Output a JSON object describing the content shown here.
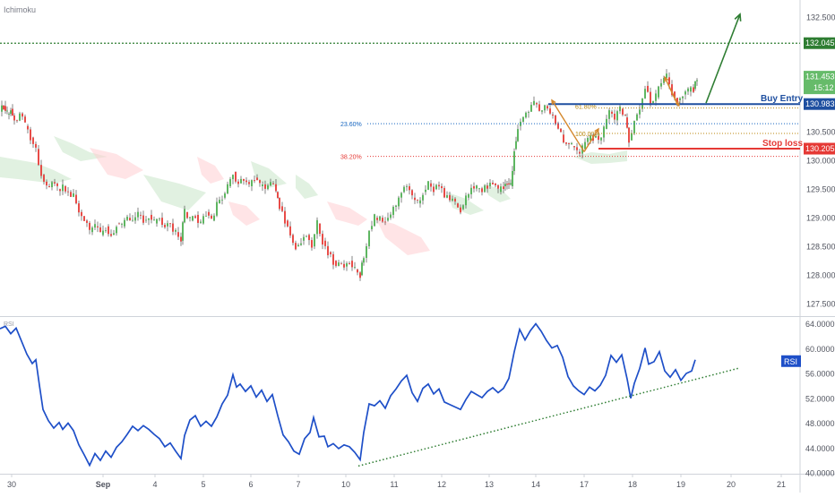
{
  "chart_data": [
    {
      "type": "candlestick",
      "indicator_label": "Ichimoku",
      "y_ticks": [
        "132.500",
        "131.500",
        "130.500",
        "130.000",
        "129.500",
        "129.000",
        "128.500",
        "128.000",
        "127.500"
      ],
      "ylim": [
        127.3,
        132.72
      ],
      "horizontal_levels": [
        {
          "value": 132.045,
          "label": "132.045",
          "color": "#2e7d32",
          "style": "dotted"
        },
        {
          "value": 131.453,
          "label": "131.453",
          "sublabel": "15:12",
          "color": "#66bb6a",
          "style": "marker"
        },
        {
          "value": 130.983,
          "label": "130.983",
          "text": "Buy Entry",
          "color": "#1e4fa0",
          "style": "solid"
        },
        {
          "value": 130.205,
          "label": "130.205",
          "text": "Stop loss",
          "color": "#e53935",
          "style": "solid"
        }
      ],
      "fibonacci": [
        {
          "label": "23.60%",
          "value": 130.64,
          "color": "#1565c0"
        },
        {
          "label": "38.20%",
          "value": 130.07,
          "color": "#e53935"
        },
        {
          "label": "61.80%",
          "value": 130.96,
          "color": "#b8860b"
        },
        {
          "label": "100.00%",
          "value": 130.47,
          "color": "#b8860b"
        }
      ],
      "grid": false,
      "price_path": [
        [
          0,
          130.85
        ],
        [
          4,
          130.95
        ],
        [
          8,
          130.8
        ],
        [
          12,
          130.9
        ],
        [
          16,
          130.7
        ],
        [
          22,
          130.82
        ],
        [
          28,
          130.6
        ],
        [
          34,
          130.4
        ],
        [
          40,
          130.2
        ],
        [
          46,
          129.75
        ],
        [
          52,
          129.55
        ],
        [
          58,
          129.62
        ],
        [
          64,
          129.5
        ],
        [
          70,
          129.55
        ],
        [
          76,
          129.45
        ],
        [
          82,
          129.4
        ],
        [
          88,
          129.1
        ],
        [
          94,
          128.95
        ],
        [
          100,
          128.75
        ],
        [
          106,
          128.85
        ],
        [
          112,
          128.7
        ],
        [
          118,
          128.85
        ],
        [
          124,
          128.7
        ],
        [
          130,
          128.9
        ],
        [
          136,
          128.85
        ],
        [
          142,
          129.0
        ],
        [
          148,
          128.95
        ],
        [
          154,
          129.05
        ],
        [
          160,
          128.95
        ],
        [
          166,
          129.05
        ],
        [
          172,
          128.9
        ],
        [
          178,
          129.0
        ],
        [
          184,
          128.85
        ],
        [
          190,
          128.9
        ],
        [
          196,
          128.75
        ],
        [
          202,
          128.6
        ],
        [
          206,
          129.1
        ],
        [
          212,
          128.95
        ],
        [
          218,
          129.05
        ],
        [
          224,
          128.9
        ],
        [
          230,
          129.1
        ],
        [
          236,
          128.95
        ],
        [
          242,
          129.25
        ],
        [
          248,
          129.35
        ],
        [
          254,
          129.55
        ],
        [
          260,
          129.8
        ],
        [
          266,
          129.6
        ],
        [
          272,
          129.65
        ],
        [
          278,
          129.55
        ],
        [
          284,
          129.7
        ],
        [
          290,
          129.55
        ],
        [
          296,
          129.5
        ],
        [
          302,
          129.6
        ],
        [
          308,
          129.45
        ],
        [
          312,
          129.2
        ],
        [
          318,
          128.95
        ],
        [
          324,
          128.7
        ],
        [
          330,
          128.5
        ],
        [
          336,
          128.6
        ],
        [
          342,
          128.7
        ],
        [
          348,
          128.5
        ],
        [
          354,
          128.9
        ],
        [
          360,
          128.6
        ],
        [
          366,
          128.4
        ],
        [
          372,
          128.25
        ],
        [
          378,
          128.2
        ],
        [
          384,
          128.15
        ],
        [
          390,
          128.25
        ],
        [
          396,
          128.1
        ],
        [
          402,
          128.0
        ],
        [
          406,
          128.3
        ],
        [
          412,
          128.8
        ],
        [
          418,
          129.0
        ],
        [
          424,
          129.0
        ],
        [
          430,
          128.95
        ],
        [
          436,
          129.05
        ],
        [
          442,
          129.2
        ],
        [
          448,
          129.45
        ],
        [
          454,
          129.55
        ],
        [
          460,
          129.35
        ],
        [
          466,
          129.25
        ],
        [
          472,
          129.45
        ],
        [
          478,
          129.6
        ],
        [
          484,
          129.5
        ],
        [
          490,
          129.55
        ],
        [
          496,
          129.35
        ],
        [
          502,
          129.3
        ],
        [
          508,
          129.25
        ],
        [
          514,
          129.15
        ],
        [
          520,
          129.35
        ],
        [
          526,
          129.55
        ],
        [
          532,
          129.5
        ],
        [
          538,
          129.45
        ],
        [
          544,
          129.55
        ],
        [
          550,
          129.6
        ],
        [
          556,
          129.45
        ],
        [
          562,
          129.55
        ],
        [
          566,
          129.6
        ],
        [
          570,
          129.55
        ],
        [
          574,
          130.2
        ],
        [
          578,
          130.6
        ],
        [
          584,
          130.75
        ],
        [
          590,
          130.85
        ],
        [
          596,
          131.0
        ],
        [
          602,
          130.85
        ],
        [
          608,
          130.95
        ],
        [
          614,
          130.8
        ],
        [
          620,
          130.65
        ],
        [
          626,
          130.45
        ],
        [
          632,
          130.3
        ],
        [
          638,
          130.25
        ],
        [
          644,
          130.15
        ],
        [
          650,
          130.2
        ],
        [
          656,
          130.35
        ],
        [
          662,
          130.4
        ],
        [
          668,
          130.35
        ],
        [
          674,
          130.55
        ],
        [
          680,
          130.85
        ],
        [
          686,
          130.7
        ],
        [
          692,
          130.9
        ],
        [
          698,
          130.75
        ],
        [
          702,
          130.35
        ],
        [
          708,
          130.7
        ],
        [
          714,
          130.9
        ],
        [
          720,
          131.3
        ],
        [
          726,
          131.0
        ],
        [
          732,
          131.1
        ],
        [
          738,
          131.35
        ],
        [
          744,
          131.45
        ],
        [
          750,
          131.2
        ],
        [
          756,
          131.05
        ],
        [
          762,
          131.15
        ],
        [
          768,
          131.2
        ],
        [
          774,
          131.25
        ],
        [
          778,
          131.45
        ]
      ]
    },
    {
      "type": "line",
      "indicator_label": "RSI",
      "series_name": "RSI",
      "y_ticks": [
        "64.0000",
        "60.0000",
        "56.0000",
        "52.0000",
        "48.0000",
        "44.0000",
        "40.0000"
      ],
      "ylim": [
        40.0,
        64.8
      ],
      "x_ticks": [
        "30",
        "Sep",
        "4",
        "5",
        "6",
        "7",
        "10",
        "11",
        "12",
        "13",
        "14",
        "17",
        "18",
        "19",
        "20",
        "21"
      ],
      "series": [
        [
          0,
          63.2
        ],
        [
          6,
          63.6
        ],
        [
          12,
          62.4
        ],
        [
          18,
          63.3
        ],
        [
          24,
          61.2
        ],
        [
          30,
          59.1
        ],
        [
          36,
          57.6
        ],
        [
          40,
          58.2
        ],
        [
          44,
          54.1
        ],
        [
          48,
          50.2
        ],
        [
          54,
          48.4
        ],
        [
          60,
          47.2
        ],
        [
          66,
          48.1
        ],
        [
          70,
          47.0
        ],
        [
          76,
          48.0
        ],
        [
          82,
          46.8
        ],
        [
          88,
          44.5
        ],
        [
          94,
          42.9
        ],
        [
          100,
          41.2
        ],
        [
          106,
          43.1
        ],
        [
          112,
          42.0
        ],
        [
          118,
          43.5
        ],
        [
          124,
          42.5
        ],
        [
          130,
          44.1
        ],
        [
          136,
          45.0
        ],
        [
          142,
          46.2
        ],
        [
          148,
          47.5
        ],
        [
          154,
          46.8
        ],
        [
          160,
          47.6
        ],
        [
          166,
          47.0
        ],
        [
          172,
          46.2
        ],
        [
          178,
          45.5
        ],
        [
          184,
          44.2
        ],
        [
          190,
          44.8
        ],
        [
          196,
          43.5
        ],
        [
          202,
          42.3
        ],
        [
          206,
          46.0
        ],
        [
          212,
          48.5
        ],
        [
          218,
          49.2
        ],
        [
          224,
          47.5
        ],
        [
          230,
          48.3
        ],
        [
          236,
          47.5
        ],
        [
          242,
          49.0
        ],
        [
          248,
          51.1
        ],
        [
          254,
          52.5
        ],
        [
          260,
          55.8
        ],
        [
          264,
          53.8
        ],
        [
          268,
          54.3
        ],
        [
          274,
          53.1
        ],
        [
          280,
          54.0
        ],
        [
          286,
          52.2
        ],
        [
          292,
          53.3
        ],
        [
          298,
          51.5
        ],
        [
          304,
          52.6
        ],
        [
          310,
          49.2
        ],
        [
          316,
          46.1
        ],
        [
          322,
          45.0
        ],
        [
          328,
          43.5
        ],
        [
          334,
          43.0
        ],
        [
          340,
          45.5
        ],
        [
          346,
          46.5
        ],
        [
          350,
          48.9
        ],
        [
          356,
          45.8
        ],
        [
          362,
          45.9
        ],
        [
          366,
          44.2
        ],
        [
          372,
          44.7
        ],
        [
          378,
          43.9
        ],
        [
          384,
          44.5
        ],
        [
          390,
          44.2
        ],
        [
          396,
          43.3
        ],
        [
          402,
          42.1
        ],
        [
          406,
          46.5
        ],
        [
          412,
          51.1
        ],
        [
          418,
          50.8
        ],
        [
          424,
          51.6
        ],
        [
          430,
          50.4
        ],
        [
          436,
          52.4
        ],
        [
          442,
          53.5
        ],
        [
          448,
          54.8
        ],
        [
          454,
          55.7
        ],
        [
          460,
          52.9
        ],
        [
          466,
          51.5
        ],
        [
          472,
          53.6
        ],
        [
          478,
          54.3
        ],
        [
          484,
          52.7
        ],
        [
          490,
          53.5
        ],
        [
          496,
          51.4
        ],
        [
          502,
          51.0
        ],
        [
          508,
          50.6
        ],
        [
          514,
          50.2
        ],
        [
          520,
          51.8
        ],
        [
          526,
          53.1
        ],
        [
          532,
          52.6
        ],
        [
          538,
          52.1
        ],
        [
          544,
          53.1
        ],
        [
          550,
          53.7
        ],
        [
          556,
          52.9
        ],
        [
          562,
          53.6
        ],
        [
          568,
          55.2
        ],
        [
          574,
          59.5
        ],
        [
          580,
          63.1
        ],
        [
          586,
          61.4
        ],
        [
          592,
          62.9
        ],
        [
          598,
          64.0
        ],
        [
          604,
          62.8
        ],
        [
          610,
          61.3
        ],
        [
          616,
          60.1
        ],
        [
          622,
          60.5
        ],
        [
          628,
          58.6
        ],
        [
          634,
          55.5
        ],
        [
          640,
          54.0
        ],
        [
          646,
          53.2
        ],
        [
          652,
          52.6
        ],
        [
          658,
          53.8
        ],
        [
          664,
          53.2
        ],
        [
          670,
          54.1
        ],
        [
          676,
          55.7
        ],
        [
          682,
          58.9
        ],
        [
          688,
          57.8
        ],
        [
          694,
          59.0
        ],
        [
          700,
          55.1
        ],
        [
          704,
          52.0
        ],
        [
          708,
          54.4
        ],
        [
          714,
          56.8
        ],
        [
          720,
          60.1
        ],
        [
          724,
          57.5
        ],
        [
          730,
          57.9
        ],
        [
          736,
          59.5
        ],
        [
          742,
          56.4
        ],
        [
          748,
          55.4
        ],
        [
          754,
          56.6
        ],
        [
          760,
          54.9
        ],
        [
          766,
          56.0
        ],
        [
          772,
          56.4
        ],
        [
          776,
          58.2
        ]
      ],
      "trendline": [
        [
          400,
          41.1
        ],
        [
          826,
          56.9
        ]
      ]
    }
  ],
  "colors": {
    "up_candle": "#4caf50",
    "down_candle": "#e53935",
    "wick": "#333333",
    "rsi_line": "#1e4fc8",
    "rsi_trend": "#2e7d32",
    "arrow_green": "#2e7d32",
    "arrow_orange": "#d4872c",
    "cloud_green": "#c8e6c9",
    "cloud_red": "#ffcdd2"
  }
}
